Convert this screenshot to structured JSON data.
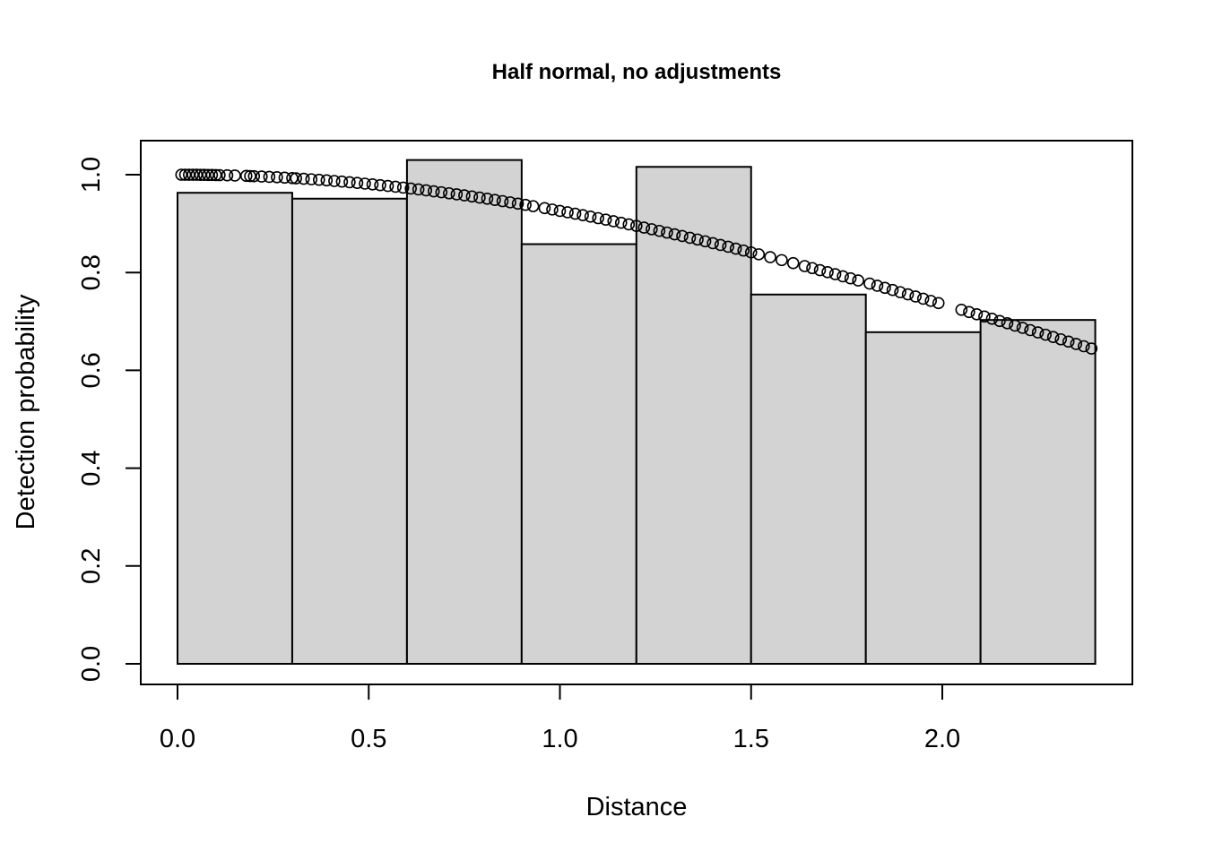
{
  "chart_data": {
    "type": "bar",
    "title": "Half normal, no adjustments",
    "xlabel": "Distance",
    "ylabel": "Detection probability",
    "xlim": [
      0,
      2.4
    ],
    "ylim": [
      0,
      1.03
    ],
    "x_ticks": [
      "0.0",
      "0.5",
      "1.0",
      "1.5",
      "2.0"
    ],
    "y_ticks": [
      "0.0",
      "0.2",
      "0.4",
      "0.6",
      "0.8",
      "1.0"
    ],
    "bin_edges": [
      0,
      0.3,
      0.6,
      0.9,
      1.2,
      1.5,
      1.8,
      2.1,
      2.4
    ],
    "values": [
      0.963,
      0.951,
      1.03,
      0.858,
      1.016,
      0.755,
      0.678,
      0.703
    ],
    "bar_color": "#d3d3d3",
    "fitted_curve": {
      "model": "half-normal",
      "sigma": 2.55,
      "distances": [
        0.01,
        0.02,
        0.03,
        0.04,
        0.05,
        0.06,
        0.07,
        0.08,
        0.09,
        0.1,
        0.11,
        0.13,
        0.15,
        0.18,
        0.19,
        0.2,
        0.22,
        0.24,
        0.26,
        0.28,
        0.3,
        0.31,
        0.33,
        0.35,
        0.37,
        0.39,
        0.41,
        0.43,
        0.45,
        0.47,
        0.49,
        0.51,
        0.53,
        0.55,
        0.57,
        0.59,
        0.61,
        0.63,
        0.65,
        0.67,
        0.69,
        0.71,
        0.73,
        0.75,
        0.77,
        0.79,
        0.81,
        0.83,
        0.85,
        0.87,
        0.89,
        0.91,
        0.93,
        0.96,
        0.98,
        1.0,
        1.02,
        1.04,
        1.06,
        1.08,
        1.1,
        1.12,
        1.14,
        1.16,
        1.18,
        1.2,
        1.22,
        1.24,
        1.26,
        1.28,
        1.3,
        1.32,
        1.34,
        1.36,
        1.38,
        1.4,
        1.42,
        1.44,
        1.46,
        1.48,
        1.5,
        1.52,
        1.55,
        1.58,
        1.61,
        1.64,
        1.66,
        1.68,
        1.7,
        1.72,
        1.74,
        1.76,
        1.78,
        1.81,
        1.83,
        1.85,
        1.87,
        1.89,
        1.91,
        1.93,
        1.95,
        1.97,
        1.99,
        2.05,
        2.07,
        2.09,
        2.11,
        2.13,
        2.15,
        2.17,
        2.19,
        2.21,
        2.23,
        2.25,
        2.27,
        2.29,
        2.31,
        2.33,
        2.35,
        2.37,
        2.39
      ]
    }
  }
}
